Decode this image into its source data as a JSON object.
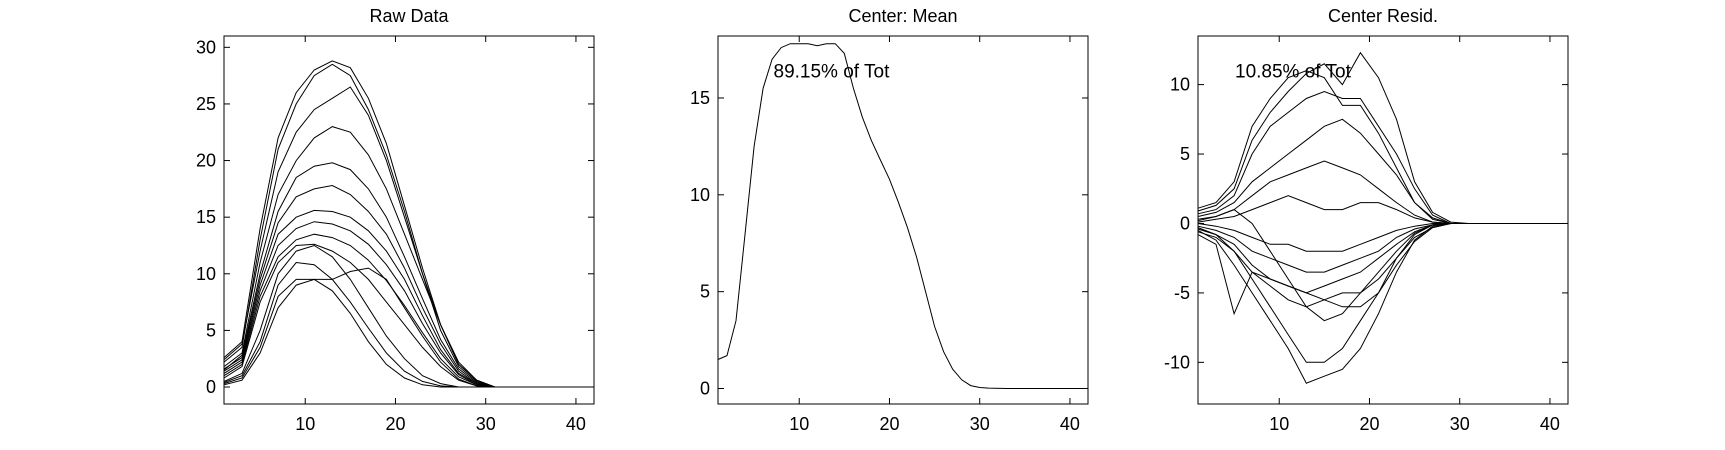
{
  "chart_data": [
    {
      "type": "line",
      "title": "Raw Data",
      "xlabel": "",
      "ylabel": "",
      "xlim": [
        1,
        42
      ],
      "ylim": [
        -1.5,
        31
      ],
      "xticks": [
        10,
        20,
        30,
        40
      ],
      "yticks": [
        0,
        5,
        10,
        15,
        20,
        25,
        30
      ],
      "annotation": "",
      "note": "approximately 60 overlapping curves; representative readings listed",
      "x": [
        1,
        3,
        5,
        7,
        9,
        11,
        13,
        15,
        17,
        19,
        21,
        23,
        25,
        27,
        29,
        31,
        35,
        42
      ],
      "series": [
        {
          "values": [
            2.6,
            4.0,
            14,
            22,
            26,
            28,
            28.8,
            28.2,
            25.5,
            21.5,
            16,
            10.5,
            5.5,
            2.0,
            0.6,
            0,
            0,
            0
          ]
        },
        {
          "values": [
            2.2,
            3.5,
            13,
            21,
            25,
            27.5,
            28.5,
            27.5,
            24.5,
            20.5,
            15.5,
            10,
            5,
            1.8,
            0.5,
            0,
            0,
            0
          ]
        },
        {
          "values": [
            2.4,
            3.8,
            12,
            19,
            22.5,
            24.5,
            25.5,
            26.5,
            24,
            20,
            15,
            10,
            5.5,
            2,
            0.6,
            0,
            0,
            0
          ]
        },
        {
          "values": [
            1.8,
            3.0,
            11,
            17,
            20,
            22,
            23,
            22.5,
            20.5,
            17.5,
            13.5,
            9.5,
            5.5,
            2.2,
            0.6,
            0,
            0,
            0
          ]
        },
        {
          "values": [
            1.5,
            2.8,
            10,
            15.5,
            18.5,
            19.5,
            19.8,
            19.2,
            17.5,
            15,
            11.5,
            7.8,
            4.2,
            1.6,
            0.4,
            0,
            0,
            0
          ]
        },
        {
          "values": [
            1.6,
            2.6,
            9.5,
            14.5,
            16.8,
            17.5,
            17.8,
            17,
            15.5,
            13.5,
            10.5,
            7,
            3.8,
            1.4,
            0.3,
            0,
            0,
            0
          ]
        },
        {
          "values": [
            1.4,
            2.4,
            9,
            13.5,
            15,
            15.6,
            15.5,
            15,
            13.8,
            12,
            9.5,
            6.3,
            3.3,
            1.2,
            0.3,
            0,
            0,
            0
          ]
        },
        {
          "values": [
            1.2,
            2.2,
            8.5,
            12.5,
            14,
            14.6,
            14.4,
            13.8,
            12.6,
            10.8,
            8.5,
            5.6,
            3,
            1.1,
            0.2,
            0,
            0,
            0
          ]
        },
        {
          "values": [
            1.0,
            2.0,
            8,
            11.5,
            13,
            13.5,
            13.2,
            12.5,
            11.2,
            9.4,
            7.2,
            4.8,
            2.5,
            0.9,
            0.2,
            0,
            0,
            0
          ]
        },
        {
          "values": [
            0.8,
            1.8,
            7.5,
            11,
            12.5,
            12.6,
            12,
            11,
            9.5,
            7.5,
            5.5,
            3.5,
            1.8,
            0.6,
            0.1,
            0,
            0,
            0
          ]
        },
        {
          "values": [
            0.4,
            1.0,
            4,
            9,
            11,
            10.8,
            9.5,
            7.5,
            5.2,
            3,
            1.4,
            0.5,
            0.1,
            0,
            0,
            0,
            0,
            0
          ]
        },
        {
          "values": [
            0.3,
            0.8,
            3.5,
            8,
            9.5,
            9.5,
            9.5,
            10.2,
            10.5,
            9.5,
            7,
            4.5,
            2.2,
            0.7,
            0.1,
            0,
            0,
            0
          ]
        },
        {
          "values": [
            0.5,
            1.2,
            5,
            10,
            12,
            12.5,
            11.5,
            9.5,
            7,
            4.5,
            2.5,
            1.0,
            0.3,
            0,
            0,
            0,
            0,
            0
          ]
        },
        {
          "values": [
            0.2,
            0.6,
            3,
            7,
            9,
            9.5,
            8.5,
            6.5,
            4,
            2,
            0.8,
            0.2,
            0,
            0,
            0,
            0,
            0,
            0
          ]
        }
      ]
    },
    {
      "type": "line",
      "title": "Center: Mean",
      "xlabel": "",
      "ylabel": "",
      "xlim": [
        1,
        42
      ],
      "ylim": [
        -0.8,
        18.2
      ],
      "xticks": [
        10,
        20,
        30,
        40
      ],
      "yticks": [
        0,
        5,
        10,
        15
      ],
      "annotation": "89.15% of Tot",
      "x": [
        1,
        2,
        3,
        4,
        5,
        6,
        7,
        8,
        9,
        10,
        11,
        12,
        13,
        14,
        15,
        16,
        17,
        18,
        19,
        20,
        21,
        22,
        23,
        24,
        25,
        26,
        27,
        28,
        29,
        30,
        31,
        33,
        36,
        42
      ],
      "series": [
        {
          "values": [
            1.5,
            1.7,
            3.5,
            8,
            12.5,
            15.5,
            17,
            17.6,
            17.8,
            17.8,
            17.8,
            17.7,
            17.8,
            17.8,
            17.3,
            15.5,
            14,
            12.8,
            11.8,
            10.8,
            9.6,
            8.3,
            6.8,
            5.0,
            3.2,
            1.9,
            1.0,
            0.45,
            0.15,
            0.05,
            0.02,
            0,
            0,
            0
          ]
        }
      ]
    },
    {
      "type": "line",
      "title": "Center Resid.",
      "xlabel": "",
      "ylabel": "",
      "xlim": [
        1,
        42
      ],
      "ylim": [
        -13,
        13.5
      ],
      "xticks": [
        10,
        20,
        30,
        40
      ],
      "yticks": [
        -10,
        -5,
        0,
        5,
        10
      ],
      "annotation": "10.85% of Tot",
      "note": "residual curves; representative readings listed",
      "x": [
        1,
        3,
        5,
        7,
        9,
        11,
        13,
        15,
        17,
        19,
        21,
        23,
        25,
        27,
        29,
        31,
        35,
        42
      ],
      "series": [
        {
          "values": [
            1.1,
            1.5,
            3,
            7,
            9,
            10.5,
            11,
            10.5,
            8.5,
            8.5,
            6.5,
            4,
            1.5,
            0.3,
            0,
            0,
            0,
            0
          ]
        },
        {
          "values": [
            0.9,
            1.3,
            2.5,
            6,
            8,
            9.5,
            10.8,
            11.5,
            10,
            12.3,
            10.5,
            7.5,
            3,
            0.8,
            0.1,
            0,
            0,
            0
          ]
        },
        {
          "values": [
            0.7,
            1.0,
            2,
            5,
            7,
            8,
            9,
            9.5,
            9,
            9,
            7,
            5,
            2.5,
            0.6,
            0,
            0,
            0,
            0
          ]
        },
        {
          "values": [
            0.5,
            0.8,
            1.5,
            3,
            4,
            5,
            6,
            7,
            7.5,
            6.5,
            5,
            3.5,
            1.5,
            0.4,
            0,
            0,
            0,
            0
          ]
        },
        {
          "values": [
            0.3,
            0.5,
            1,
            2,
            3,
            3.5,
            4,
            4.5,
            4,
            3.5,
            2.5,
            1.5,
            0.6,
            0.1,
            0,
            0,
            0,
            0
          ]
        },
        {
          "values": [
            0.1,
            0.3,
            0.5,
            1,
            1.5,
            2,
            1.5,
            1.0,
            1.0,
            1.5,
            1.5,
            1.0,
            0.4,
            0.1,
            0,
            0,
            0,
            0
          ]
        },
        {
          "values": [
            0,
            -0.2,
            -0.5,
            -1,
            -1.5,
            -1.5,
            -2,
            -2,
            -2,
            -1.5,
            -1,
            -0.5,
            -0.2,
            0,
            0,
            0,
            0,
            0
          ]
        },
        {
          "values": [
            -0.2,
            -0.5,
            -1,
            -2,
            -2.5,
            -3,
            -3.5,
            -3.5,
            -3,
            -2.5,
            -2,
            -1,
            -0.4,
            -0.1,
            0,
            0,
            0,
            0
          ]
        },
        {
          "values": [
            -0.4,
            -0.8,
            -1.5,
            -3,
            -4,
            -4.5,
            -5,
            -4.5,
            -4,
            -3.5,
            -2.5,
            -1.5,
            -0.6,
            -0.1,
            0,
            0,
            0,
            0
          ]
        },
        {
          "values": [
            -0.6,
            -1.0,
            -2,
            -3.5,
            -4.5,
            -5.5,
            -6,
            -5.5,
            -5,
            -5,
            -4,
            -2.5,
            -1,
            -0.3,
            0,
            0,
            0,
            0
          ]
        },
        {
          "values": [
            -0.8,
            -1.5,
            -6.5,
            -3.5,
            -4,
            -4.5,
            -5,
            -5.5,
            -6,
            -6,
            -5,
            -3,
            -1.3,
            -0.3,
            0,
            0,
            0,
            0
          ]
        },
        {
          "values": [
            -0.5,
            -1.2,
            -3,
            -5,
            -7,
            -9,
            -11.5,
            -11,
            -10.5,
            -9,
            -6.5,
            -3.5,
            -1.2,
            -0.2,
            0,
            0,
            0,
            0
          ]
        },
        {
          "values": [
            -0.3,
            -0.8,
            -2,
            -4,
            -6,
            -8,
            -10,
            -10,
            -9,
            -7,
            -5,
            -2.5,
            -0.8,
            -0.1,
            0,
            0,
            0,
            0
          ]
        },
        {
          "values": [
            0.2,
            0.5,
            1,
            0,
            -2,
            -4,
            -6,
            -7,
            -6.5,
            -5,
            -3.5,
            -2,
            -0.7,
            -0.1,
            0,
            0,
            0,
            0
          ]
        }
      ]
    }
  ]
}
